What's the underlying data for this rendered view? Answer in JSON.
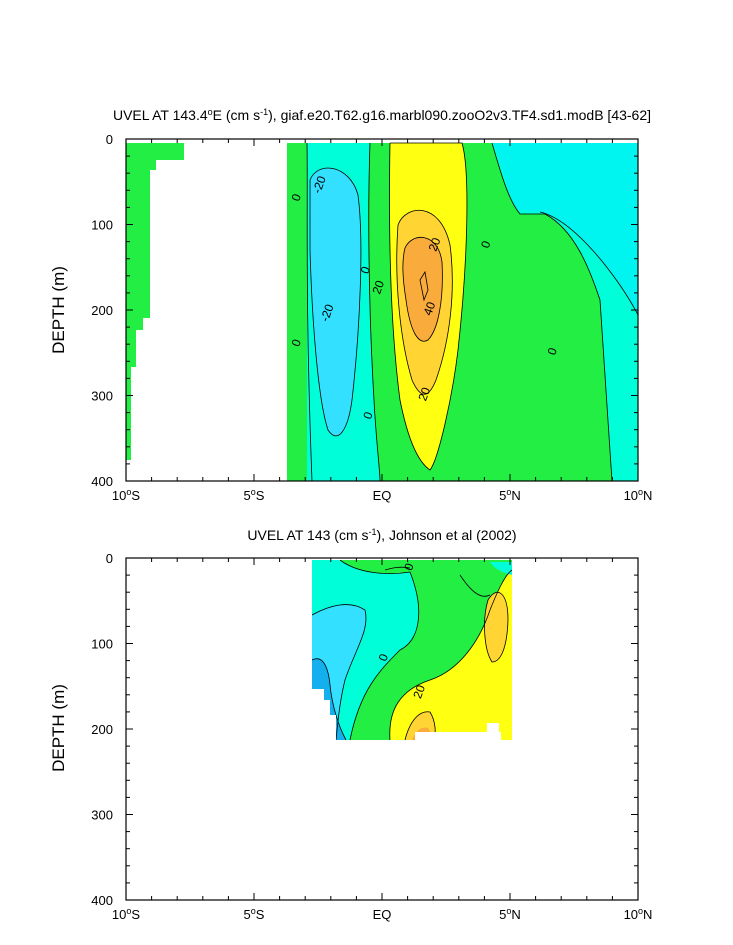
{
  "colors": {
    "green": "#22ee44",
    "lightgreen": "#55f055",
    "cyan": "#00ffd8",
    "aqua": "#00f5f0",
    "skyblue": "#33e0ff",
    "blue": "#14b0ee",
    "yellow": "#ffff11",
    "gold": "#ffd433",
    "orange": "#f9ab3c",
    "line": "#000000"
  },
  "chart_data": [
    {
      "type": "heatmap",
      "title_pre": "UVEL AT 143.4",
      "title_deg": "o",
      "title_mid": "E (cm s",
      "title_exp": "-1",
      "title_post": "), giaf.e20.T62.g16.marbl090.zooO2v3.TF4.sd1.modB [43-62]",
      "ylabel": "DEPTH (m)",
      "xlim": [
        -10,
        10
      ],
      "ylim": [
        400,
        0
      ],
      "x_ticks": [
        {
          "value": -10,
          "num": "10",
          "deg": "o",
          "hemi": "S"
        },
        {
          "value": -5,
          "num": "5",
          "deg": "o",
          "hemi": "S"
        },
        {
          "value": 0,
          "num": "EQ",
          "deg": "",
          "hemi": ""
        },
        {
          "value": 5,
          "num": "5",
          "deg": "o",
          "hemi": "N"
        },
        {
          "value": 10,
          "num": "10",
          "deg": "o",
          "hemi": "N"
        }
      ],
      "y_ticks": [
        {
          "value": 0,
          "label": "0"
        },
        {
          "value": 100,
          "label": "100"
        },
        {
          "value": 200,
          "label": "200"
        },
        {
          "value": 300,
          "label": "300"
        },
        {
          "value": 400,
          "label": "400"
        }
      ],
      "contour_labels": [
        {
          "x": -3.2,
          "y": 70,
          "text": "0"
        },
        {
          "x": -2.3,
          "y": 55,
          "text": "-20"
        },
        {
          "x": -0.5,
          "y": 155,
          "text": "0"
        },
        {
          "x": -2.0,
          "y": 205,
          "text": "-20"
        },
        {
          "x": -3.2,
          "y": 240,
          "text": "0"
        },
        {
          "x": 0.0,
          "y": 175,
          "text": "20"
        },
        {
          "x": 2.2,
          "y": 125,
          "text": "20"
        },
        {
          "x": 4.2,
          "y": 125,
          "text": "0"
        },
        {
          "x": 2.0,
          "y": 200,
          "text": "40"
        },
        {
          "x": 1.8,
          "y": 300,
          "text": "20"
        },
        {
          "x": -0.4,
          "y": 325,
          "text": "0"
        },
        {
          "x": 6.8,
          "y": 250,
          "text": "0"
        }
      ]
    },
    {
      "type": "heatmap",
      "title_pre": "UVEL AT 143 (cm s",
      "title_exp": "-1",
      "title_post": "), Johnson et al (2002)",
      "ylabel": "DEPTH (m)",
      "xlim": [
        -10,
        10
      ],
      "ylim": [
        400,
        0
      ],
      "x_ticks": [
        {
          "value": -10,
          "num": "10",
          "deg": "o",
          "hemi": "S"
        },
        {
          "value": -5,
          "num": "5",
          "deg": "o",
          "hemi": "S"
        },
        {
          "value": 0,
          "num": "EQ",
          "deg": "",
          "hemi": ""
        },
        {
          "value": 5,
          "num": "5",
          "deg": "o",
          "hemi": "N"
        },
        {
          "value": 10,
          "num": "10",
          "deg": "o",
          "hemi": "N"
        }
      ],
      "y_ticks": [
        {
          "value": 0,
          "label": "0"
        },
        {
          "value": 100,
          "label": "100"
        },
        {
          "value": 200,
          "label": "200"
        },
        {
          "value": 300,
          "label": "300"
        },
        {
          "value": 400,
          "label": "400"
        }
      ],
      "contour_labels": [
        {
          "x": 1.2,
          "y": 12,
          "text": "0"
        },
        {
          "x": 0.2,
          "y": 118,
          "text": "0"
        },
        {
          "x": 1.6,
          "y": 158,
          "text": "20"
        }
      ]
    }
  ]
}
